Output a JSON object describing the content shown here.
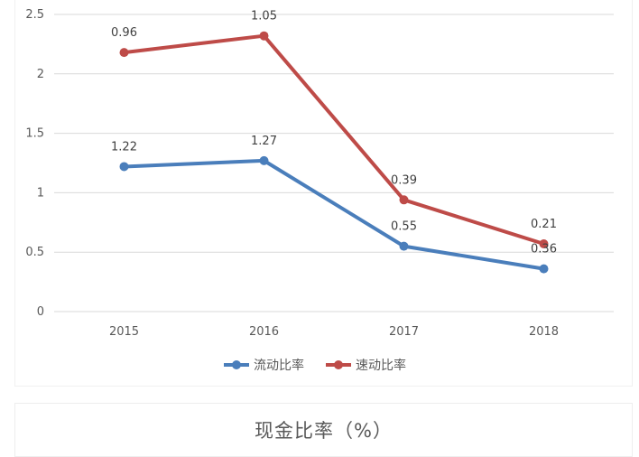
{
  "chart_data": {
    "type": "line",
    "categories": [
      "2015",
      "2016",
      "2017",
      "2018"
    ],
    "ylim": [
      0,
      2.5
    ],
    "yticks": [
      "0",
      "0.5",
      "1",
      "1.5",
      "2",
      "2.5"
    ],
    "grid": true,
    "legend_position": "bottom",
    "series": [
      {
        "name": "流动比率",
        "color": "#4a7ebb",
        "values": [
          1.22,
          1.27,
          0.55,
          0.36
        ],
        "labels": [
          "1.22",
          "1.27",
          "0.55",
          "0.36"
        ]
      },
      {
        "name": "速动比率",
        "color": "#be4b48",
        "values": [
          2.18,
          2.32,
          0.94,
          0.57
        ],
        "labels": [
          "0.96",
          "1.05",
          "0.39",
          "0.21"
        ]
      }
    ]
  },
  "next_card": {
    "title": "现金比率（%）"
  }
}
